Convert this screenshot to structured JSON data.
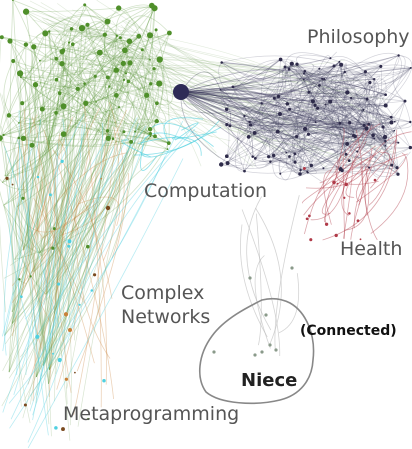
{
  "labels": {
    "philosophy": "Philosophy",
    "computation": "Computation",
    "health": "Health",
    "complex_line1": "Complex",
    "complex_line2": "Networks",
    "metaprogramming": "Metaprogramming",
    "niece": "Niece",
    "connected": "(Connected)"
  },
  "colors": {
    "philosophy_cluster": "#3d3a5c",
    "green_cluster": "#4f8f2a",
    "health_cluster": "#b03a48",
    "orange_edges": "#c8823a",
    "cyan_edges": "#4fd0e0",
    "annotation": "#888888"
  }
}
